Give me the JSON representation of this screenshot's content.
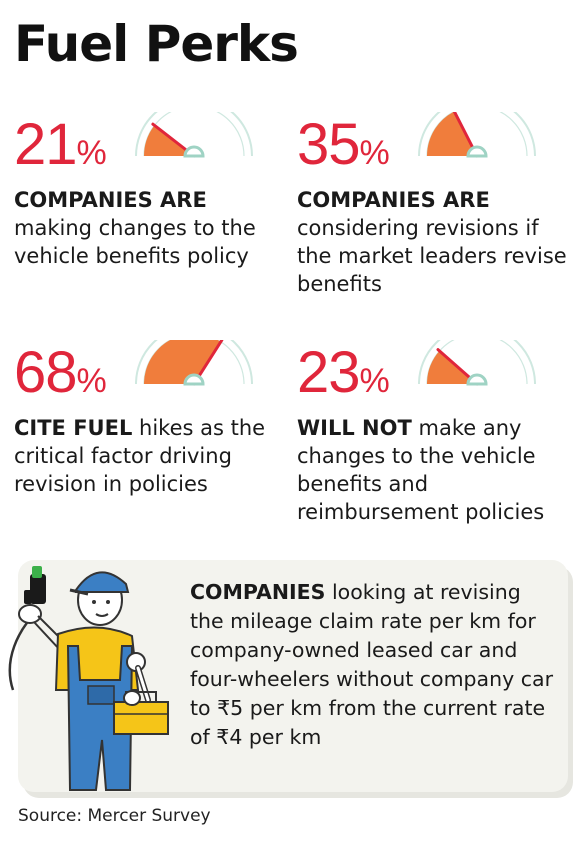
{
  "title": "Fuel Perks",
  "chart_data": {
    "type": "gauge",
    "items": [
      {
        "value": 21,
        "sign": "%",
        "lead": "COMPANIES ARE",
        "rest": "making changes to the vehicle benefits policy"
      },
      {
        "value": 35,
        "sign": "%",
        "lead": "COMPANIES ARE",
        "rest": "considering revisions if the market leaders revise benefits"
      },
      {
        "value": 68,
        "sign": "%",
        "lead": "CITE FUEL",
        "rest": " hikes as the critical factor driving revision in policies"
      },
      {
        "value": 23,
        "sign": "%",
        "lead": "WILL NOT",
        "rest": " make any changes to the vehicle benefits and reimbursement policies"
      }
    ]
  },
  "note": {
    "lead": "COMPANIES",
    "rest": " looking at revising the mileage claim rate per km for company-owned leased car and four-wheelers without company car to ₹5 per km from the current rate of ₹4 per km"
  },
  "source": "Source: Mercer Survey",
  "colors": {
    "accent_red": "#e0263b",
    "gauge_fill": "#f07d3c",
    "gauge_track": "#cfe8e0",
    "needle": "#e0263b",
    "hub": "#9fd3c4"
  },
  "icons": [
    "mechanic-illustration",
    "fuel-nozzle-icon",
    "toolbox-icon",
    "wrench-icon"
  ]
}
